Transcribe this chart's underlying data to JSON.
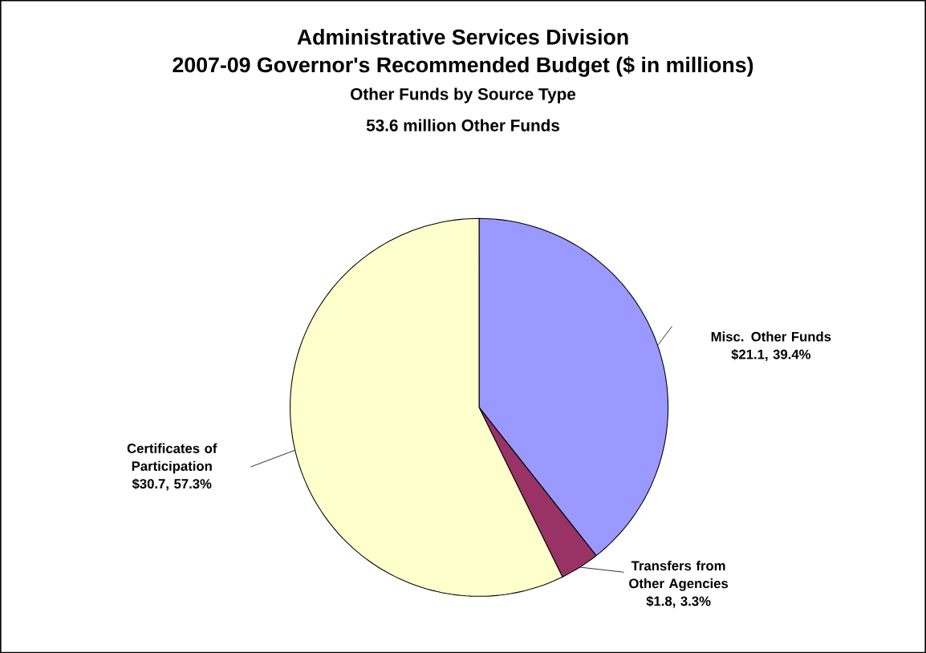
{
  "chart_data": {
    "type": "pie",
    "title": "Administrative Services Division",
    "subtitle": "2007-09 Governor's Recommended Budget ($ in millions)",
    "annotations": [
      "Other Funds by Source Type",
      "53.6 million Other Funds"
    ],
    "categories": [
      "Misc. Other Funds",
      "Transfers from Other Agencies",
      "Certificates of Participation"
    ],
    "values": [
      21.1,
      1.8,
      30.7
    ],
    "value_labels": [
      "$21.1, 39.4%",
      "$1.8, 3.3%",
      "$30.7, 57.3%"
    ],
    "colors": [
      "#9999ff",
      "#993366",
      "#ffffcc"
    ]
  }
}
